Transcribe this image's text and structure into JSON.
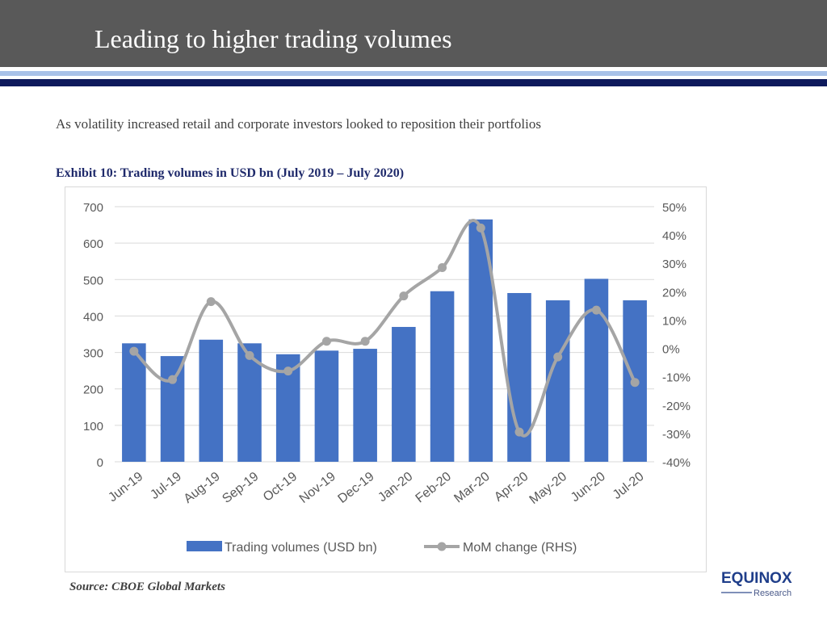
{
  "header": {
    "title": "Leading to higher trading volumes"
  },
  "subtitle": "As volatility increased retail and corporate investors looked to reposition their portfolios",
  "exhibit_title": "Exhibit 10: Trading volumes in USD bn (July 2019 – July 2020)",
  "source": "Source: CBOE Global Markets",
  "logo": {
    "name": "EQUINOX",
    "sub": "Research",
    "color": "#1f3e8a"
  },
  "colors": {
    "bar": "#4472c4",
    "line": "#a5a5a5",
    "header": "#595959",
    "accent": "#0e1a5c"
  },
  "chart_data": {
    "type": "bar+line",
    "categories": [
      "Jun-19",
      "Jul-19",
      "Aug-19",
      "Sep-19",
      "Oct-19",
      "Nov-19",
      "Dec-19",
      "Jan-20",
      "Feb-20",
      "Mar-20",
      "Apr-20",
      "May-20",
      "Jun-20",
      "Jul-20"
    ],
    "series": [
      {
        "name": "Trading volumes (USD bn)",
        "type": "bar",
        "axis": "left",
        "values": [
          325,
          290,
          335,
          325,
          295,
          305,
          310,
          370,
          468,
          665,
          463,
          443,
          502,
          443
        ]
      },
      {
        "name": "MoM change (RHS)",
        "type": "line",
        "axis": "right",
        "values": [
          -1.0,
          -11.0,
          16.5,
          -2.5,
          -8.0,
          2.5,
          2.5,
          18.5,
          28.5,
          42.5,
          -29.5,
          -3.0,
          13.5,
          -12.0
        ]
      }
    ],
    "y_left": {
      "min": 0,
      "max": 700,
      "ticks": [
        "0",
        "100",
        "200",
        "300",
        "400",
        "500",
        "600",
        "700"
      ]
    },
    "y_right": {
      "min": -40,
      "max": 50,
      "ticks": [
        "-40%",
        "-30%",
        "-20%",
        "-10%",
        "0%",
        "10%",
        "20%",
        "30%",
        "40%",
        "50%"
      ]
    },
    "grid": true,
    "legend_position": "bottom"
  }
}
